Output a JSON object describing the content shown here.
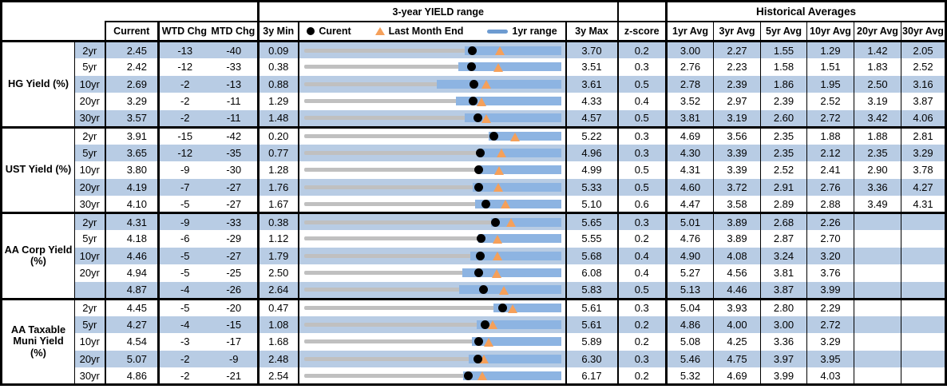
{
  "header": {
    "current": "Current",
    "wtd": "WTD Chg",
    "mtd": "MTD Chg",
    "min3y": "3y Min",
    "chart_title": "3-year YIELD range",
    "legend_current": "Curent",
    "legend_last": "Last Month End",
    "legend_range": "1yr range",
    "max3y": "3y Max",
    "zscore": "z-score",
    "hist_title": "Historical Averages",
    "avg_cols": [
      "1yr Avg",
      "3yr Avg",
      "5yr Avg",
      "10yr Avg",
      "20yr Avg",
      "30yr Avg"
    ]
  },
  "colors": {
    "row_alt": "#b8cce4",
    "bar_1yr_range": "#8db4e2",
    "track_3yr_range": "#c0c0c0",
    "marker_current": "#000000",
    "marker_last_month": "#f5a05a",
    "legend_bar_swatch": "#6d9bd1"
  },
  "chart_data": {
    "type": "table",
    "note": "Each row is a bullet/range strip scaled from 3y Min to 3y Max; blue bar = 1yr range (low estimated from pixels, high = 3y Max), black dot = Current, orange triangle = Last Month End (Current - MTD chg).",
    "groups": [
      {
        "label": "HG Yield (%)",
        "rows": [
          {
            "tenor": "2yr",
            "current": "2.45",
            "wtd": "-13",
            "mtd": "-40",
            "min": "0.09",
            "max": "3.70",
            "z": "0.2",
            "last": 2.85,
            "low1y": 2.35,
            "high1y": 3.7,
            "avgs": [
              "3.00",
              "2.27",
              "1.55",
              "1.29",
              "1.42",
              "2.05"
            ]
          },
          {
            "tenor": "5yr",
            "current": "2.42",
            "wtd": "-12",
            "mtd": "-33",
            "min": "0.38",
            "max": "3.51",
            "z": "0.3",
            "last": 2.75,
            "low1y": 2.26,
            "high1y": 3.51,
            "avgs": [
              "2.76",
              "2.23",
              "1.58",
              "1.51",
              "1.83",
              "2.52"
            ]
          },
          {
            "tenor": "10yr",
            "current": "2.69",
            "wtd": "-2",
            "mtd": "-13",
            "min": "0.88",
            "max": "3.61",
            "z": "0.5",
            "last": 2.82,
            "low1y": 2.29,
            "high1y": 3.61,
            "avgs": [
              "2.78",
              "2.39",
              "1.86",
              "1.95",
              "2.50",
              "3.16"
            ]
          },
          {
            "tenor": "20yr",
            "current": "3.29",
            "wtd": "-2",
            "mtd": "-11",
            "min": "1.29",
            "max": "4.33",
            "z": "0.4",
            "last": 3.4,
            "low1y": 3.09,
            "high1y": 4.33,
            "avgs": [
              "3.52",
              "2.97",
              "2.39",
              "2.52",
              "3.19",
              "3.87"
            ]
          },
          {
            "tenor": "30yr",
            "current": "3.57",
            "wtd": "-2",
            "mtd": "-11",
            "min": "1.48",
            "max": "4.57",
            "z": "0.5",
            "last": 3.68,
            "low1y": 3.41,
            "high1y": 4.57,
            "avgs": [
              "3.81",
              "3.19",
              "2.60",
              "2.72",
              "3.42",
              "4.06"
            ]
          }
        ]
      },
      {
        "label": "UST Yield (%)",
        "rows": [
          {
            "tenor": "2yr",
            "current": "3.91",
            "wtd": "-15",
            "mtd": "-42",
            "min": "0.20",
            "max": "5.22",
            "z": "0.3",
            "last": 4.33,
            "low1y": 3.81,
            "high1y": 5.22,
            "avgs": [
              "4.69",
              "3.56",
              "2.35",
              "1.88",
              "1.88",
              "2.81"
            ]
          },
          {
            "tenor": "5yr",
            "current": "3.65",
            "wtd": "-12",
            "mtd": "-35",
            "min": "0.77",
            "max": "4.96",
            "z": "0.3",
            "last": 4.0,
            "low1y": 3.62,
            "high1y": 4.96,
            "avgs": [
              "4.30",
              "3.39",
              "2.35",
              "2.12",
              "2.35",
              "3.29"
            ]
          },
          {
            "tenor": "10yr",
            "current": "3.80",
            "wtd": "-9",
            "mtd": "-30",
            "min": "1.28",
            "max": "4.99",
            "z": "0.5",
            "last": 4.1,
            "low1y": 3.8,
            "high1y": 4.99,
            "avgs": [
              "4.31",
              "3.39",
              "2.52",
              "2.41",
              "2.90",
              "3.78"
            ]
          },
          {
            "tenor": "20yr",
            "current": "4.19",
            "wtd": "-7",
            "mtd": "-27",
            "min": "1.76",
            "max": "5.33",
            "z": "0.5",
            "last": 4.46,
            "low1y": 4.11,
            "high1y": 5.33,
            "avgs": [
              "4.60",
              "3.72",
              "2.91",
              "2.76",
              "3.36",
              "4.27"
            ]
          },
          {
            "tenor": "30yr",
            "current": "4.10",
            "wtd": "-5",
            "mtd": "-27",
            "min": "1.67",
            "max": "5.10",
            "z": "0.6",
            "last": 4.37,
            "low1y": 3.96,
            "high1y": 5.1,
            "avgs": [
              "4.47",
              "3.58",
              "2.89",
              "2.88",
              "3.49",
              "4.31"
            ]
          }
        ]
      },
      {
        "label": "AA Corp Yield (%)",
        "rows": [
          {
            "tenor": "2yr",
            "current": "4.31",
            "wtd": "-9",
            "mtd": "-33",
            "min": "0.38",
            "max": "5.65",
            "z": "0.3",
            "last": 4.64,
            "low1y": 4.21,
            "high1y": 5.65,
            "avgs": [
              "5.01",
              "3.89",
              "2.68",
              "2.26",
              "",
              ""
            ]
          },
          {
            "tenor": "5yr",
            "current": "4.18",
            "wtd": "-6",
            "mtd": "-29",
            "min": "1.12",
            "max": "5.55",
            "z": "0.2",
            "last": 4.47,
            "low1y": 4.12,
            "high1y": 5.55,
            "avgs": [
              "4.76",
              "3.89",
              "2.87",
              "2.70",
              "",
              ""
            ]
          },
          {
            "tenor": "10yr",
            "current": "4.46",
            "wtd": "-5",
            "mtd": "-27",
            "min": "1.79",
            "max": "5.68",
            "z": "0.4",
            "last": 4.73,
            "low1y": 4.31,
            "high1y": 5.68,
            "avgs": [
              "4.90",
              "4.08",
              "3.24",
              "3.20",
              "",
              ""
            ]
          },
          {
            "tenor": "20yr",
            "current": "4.94",
            "wtd": "-5",
            "mtd": "-25",
            "min": "2.50",
            "max": "6.08",
            "z": "0.4",
            "last": 5.19,
            "low1y": 4.71,
            "high1y": 6.08,
            "avgs": [
              "5.27",
              "4.56",
              "3.81",
              "3.76",
              "",
              ""
            ]
          },
          {
            "tenor": "",
            "current": "4.87",
            "wtd": "-4",
            "mtd": "-26",
            "min": "2.64",
            "max": "5.83",
            "z": "0.5",
            "last": 5.13,
            "low1y": 4.57,
            "high1y": 5.83,
            "avgs": [
              "5.13",
              "4.46",
              "3.87",
              "3.99",
              "",
              ""
            ]
          }
        ]
      },
      {
        "label": "AA Taxable Muni Yield (%)",
        "rows": [
          {
            "tenor": "2yr",
            "current": "4.45",
            "wtd": "-5",
            "mtd": "-20",
            "min": "0.47",
            "max": "5.61",
            "z": "0.3",
            "last": 4.65,
            "low1y": 4.26,
            "high1y": 5.61,
            "avgs": [
              "5.04",
              "3.93",
              "2.80",
              "2.29",
              "",
              ""
            ]
          },
          {
            "tenor": "5yr",
            "current": "4.27",
            "wtd": "-4",
            "mtd": "-15",
            "min": "1.08",
            "max": "5.61",
            "z": "0.2",
            "last": 4.42,
            "low1y": 4.12,
            "high1y": 5.61,
            "avgs": [
              "4.86",
              "4.00",
              "3.00",
              "2.72",
              "",
              ""
            ]
          },
          {
            "tenor": "10yr",
            "current": "4.54",
            "wtd": "-3",
            "mtd": "-17",
            "min": "1.68",
            "max": "5.89",
            "z": "0.2",
            "last": 4.71,
            "low1y": 4.43,
            "high1y": 5.89,
            "avgs": [
              "5.08",
              "4.25",
              "3.36",
              "3.29",
              "",
              ""
            ]
          },
          {
            "tenor": "20yr",
            "current": "5.07",
            "wtd": "-2",
            "mtd": "-9",
            "min": "2.48",
            "max": "6.30",
            "z": "0.3",
            "last": 5.16,
            "low1y": 4.93,
            "high1y": 6.3,
            "avgs": [
              "5.46",
              "4.75",
              "3.97",
              "3.95",
              "",
              ""
            ]
          },
          {
            "tenor": "30yr",
            "current": "4.86",
            "wtd": "-2",
            "mtd": "-21",
            "min": "2.54",
            "max": "6.17",
            "z": "0.2",
            "last": 5.07,
            "low1y": 4.79,
            "high1y": 6.17,
            "avgs": [
              "5.32",
              "4.69",
              "3.99",
              "4.03",
              "",
              ""
            ]
          }
        ]
      }
    ]
  }
}
